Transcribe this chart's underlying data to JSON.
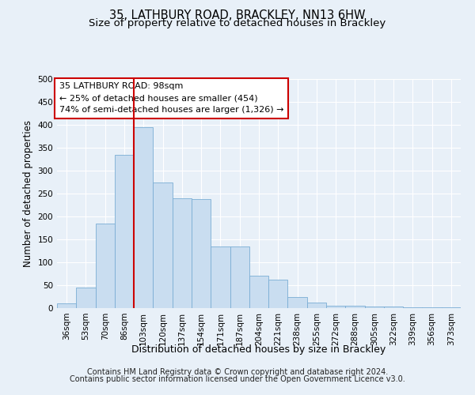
{
  "title_line1": "35, LATHBURY ROAD, BRACKLEY, NN13 6HW",
  "title_line2": "Size of property relative to detached houses in Brackley",
  "xlabel": "Distribution of detached houses by size in Brackley",
  "ylabel": "Number of detached properties",
  "bar_color": "#c9ddf0",
  "bar_edge_color": "#7aadd4",
  "bg_color": "#e8f0f8",
  "grid_color": "#ffffff",
  "categories": [
    "36sqm",
    "53sqm",
    "70sqm",
    "86sqm",
    "103sqm",
    "120sqm",
    "137sqm",
    "154sqm",
    "171sqm",
    "187sqm",
    "204sqm",
    "221sqm",
    "238sqm",
    "255sqm",
    "272sqm",
    "288sqm",
    "305sqm",
    "322sqm",
    "339sqm",
    "356sqm",
    "373sqm"
  ],
  "values": [
    10,
    45,
    185,
    335,
    395,
    275,
    240,
    238,
    135,
    135,
    70,
    62,
    25,
    12,
    6,
    5,
    3,
    3,
    2,
    1,
    2
  ],
  "vline_color": "#cc0000",
  "annotation_text": "35 LATHBURY ROAD: 98sqm\n← 25% of detached houses are smaller (454)\n74% of semi-detached houses are larger (1,326) →",
  "annotation_box_color": "#ffffff",
  "annotation_box_edge": "#cc0000",
  "ylim": [
    0,
    500
  ],
  "yticks": [
    0,
    50,
    100,
    150,
    200,
    250,
    300,
    350,
    400,
    450,
    500
  ],
  "footer1": "Contains HM Land Registry data © Crown copyright and database right 2024.",
  "footer2": "Contains public sector information licensed under the Open Government Licence v3.0.",
  "title_fontsize": 10.5,
  "subtitle_fontsize": 9.5,
  "axis_label_fontsize": 8.5,
  "tick_fontsize": 7.5,
  "annotation_fontsize": 8,
  "footer_fontsize": 7
}
